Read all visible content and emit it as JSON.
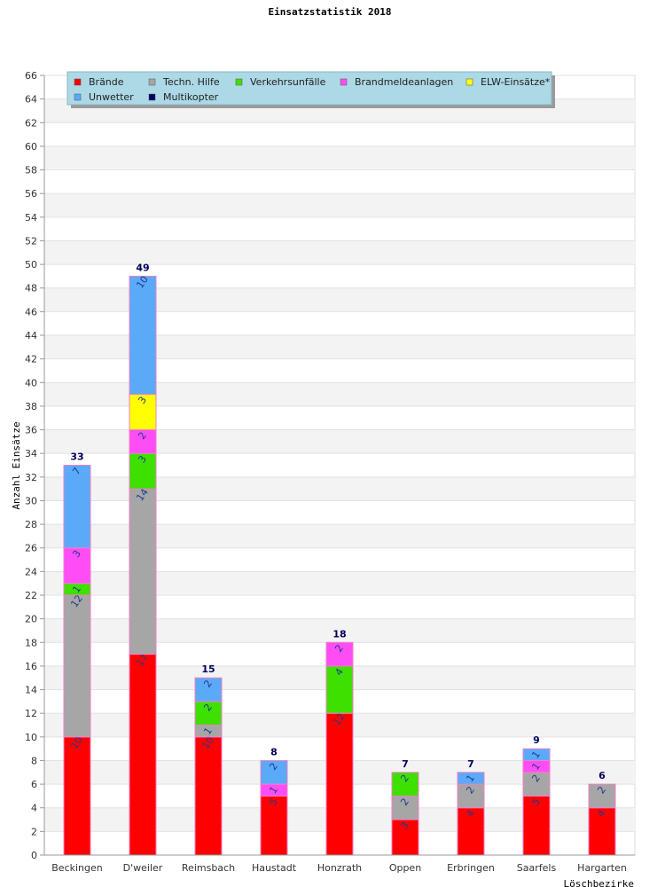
{
  "chart_data": {
    "type": "bar",
    "stacked": true,
    "title": "Einsatzstatistik 2018",
    "xlabel": "Löschbezirke",
    "ylabel": "Anzahl Einsätze",
    "ylim": [
      0,
      66
    ],
    "ytick_step": 2,
    "grid": true,
    "legend_position": "top-left",
    "categories": [
      "Beckingen",
      "D'weiler",
      "Reimsbach",
      "Haustadt",
      "Honzrath",
      "Oppen",
      "Erbringen",
      "Saarfels",
      "Hargarten"
    ],
    "series": [
      {
        "name": "Brände",
        "color": "#ff0000",
        "values": [
          10,
          17,
          10,
          5,
          12,
          3,
          4,
          5,
          4
        ]
      },
      {
        "name": "Techn. Hilfe",
        "color": "#a6a6a6",
        "values": [
          12,
          14,
          1,
          0,
          0,
          2,
          2,
          2,
          2
        ]
      },
      {
        "name": "Verkehrsunfälle",
        "color": "#3ee000",
        "values": [
          1,
          3,
          2,
          0,
          4,
          2,
          0,
          0,
          0
        ]
      },
      {
        "name": "Brandmeldeanlagen",
        "color": "#ff4df5",
        "values": [
          3,
          2,
          0,
          1,
          2,
          0,
          0,
          1,
          0
        ]
      },
      {
        "name": "ELW-Einsätze*",
        "color": "#ffff00",
        "values": [
          0,
          3,
          0,
          0,
          0,
          0,
          0,
          0,
          0
        ]
      },
      {
        "name": "Unwetter",
        "color": "#5aaaf8",
        "values": [
          7,
          10,
          2,
          2,
          0,
          0,
          1,
          1,
          0
        ]
      },
      {
        "name": "Multikopter",
        "color": "#000066",
        "values": [
          0,
          0,
          0,
          0,
          0,
          0,
          0,
          0,
          0
        ]
      }
    ],
    "totals": [
      33,
      49,
      15,
      8,
      18,
      7,
      7,
      9,
      6
    ]
  }
}
